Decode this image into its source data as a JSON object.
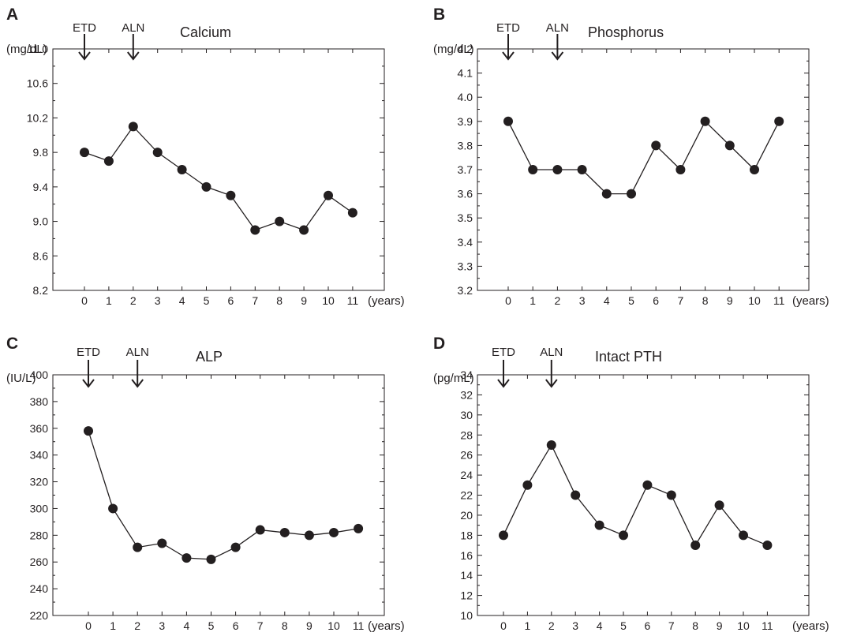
{
  "chart_data": [
    {
      "type": "line",
      "panel_label": "A",
      "title": "Calcium",
      "unit": "(mg/dL)",
      "x_unit": "(years)",
      "markers": [
        {
          "label": "ETD",
          "x": 0
        },
        {
          "label": "ALN",
          "x": 2
        }
      ],
      "x": [
        0,
        1,
        2,
        3,
        4,
        5,
        6,
        7,
        8,
        9,
        10,
        11
      ],
      "ylim": [
        8.2,
        11.0
      ],
      "y_ticks": [
        "8.2",
        "8.6",
        "9.0",
        "9.4",
        "9.8",
        "10.2",
        "10.6",
        "11.0"
      ],
      "y_minor_step": 0.2,
      "values": [
        9.8,
        9.7,
        10.1,
        9.8,
        9.6,
        9.4,
        9.3,
        8.9,
        9.0,
        8.9,
        9.3,
        9.1
      ]
    },
    {
      "type": "line",
      "panel_label": "B",
      "title": "Phosphorus",
      "unit": "(mg/dL)",
      "x_unit": "(years)",
      "markers": [
        {
          "label": "ETD",
          "x": 0
        },
        {
          "label": "ALN",
          "x": 2
        }
      ],
      "x": [
        0,
        1,
        2,
        3,
        4,
        5,
        6,
        7,
        8,
        9,
        10,
        11
      ],
      "ylim": [
        3.2,
        4.2
      ],
      "y_ticks": [
        "3.2",
        "3.3",
        "3.4",
        "3.5",
        "3.6",
        "3.7",
        "3.8",
        "3.9",
        "4.0",
        "4.1",
        "4.2"
      ],
      "y_minor_step": 0.1,
      "values": [
        3.9,
        3.7,
        3.7,
        3.7,
        3.6,
        3.6,
        3.8,
        3.7,
        3.9,
        3.8,
        3.7,
        3.9
      ]
    },
    {
      "type": "line",
      "panel_label": "C",
      "title": "ALP",
      "unit": "(IU/L)",
      "x_unit": "(years)",
      "markers": [
        {
          "label": "ETD",
          "x": 0
        },
        {
          "label": "ALN",
          "x": 2
        }
      ],
      "x": [
        0,
        1,
        2,
        3,
        4,
        5,
        6,
        7,
        8,
        9,
        10,
        11
      ],
      "ylim": [
        220,
        400
      ],
      "y_ticks": [
        "220",
        "240",
        "260",
        "280",
        "300",
        "320",
        "340",
        "360",
        "380",
        "400"
      ],
      "y_minor_step": 20,
      "values": [
        358,
        300,
        271,
        274,
        263,
        262,
        271,
        284,
        282,
        280,
        282,
        285
      ]
    },
    {
      "type": "line",
      "panel_label": "D",
      "title": "Intact PTH",
      "unit": "(pg/mL)",
      "x_unit": "(years)",
      "markers": [
        {
          "label": "ETD",
          "x": 0
        },
        {
          "label": "ALN",
          "x": 2
        }
      ],
      "x": [
        0,
        1,
        2,
        3,
        4,
        5,
        6,
        7,
        8,
        9,
        10,
        11
      ],
      "ylim": [
        10,
        34
      ],
      "y_ticks": [
        "10",
        "12",
        "14",
        "16",
        "18",
        "20",
        "22",
        "24",
        "26",
        "28",
        "30",
        "32",
        "34"
      ],
      "y_minor_step": 2,
      "values": [
        18,
        23,
        27,
        22,
        19,
        18,
        23,
        22,
        17,
        21,
        18,
        17
      ]
    }
  ]
}
